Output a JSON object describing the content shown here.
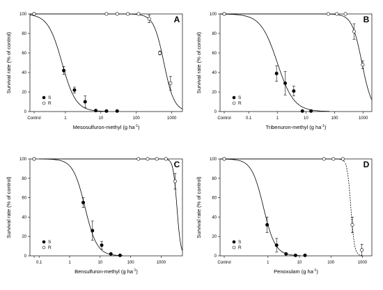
{
  "chart_data": [
    {
      "type": "scatter",
      "panel": "A",
      "xlabel": "Mesosulfuron-methyl (g ha",
      "xlabel_sup": "-1",
      "xlabel_end": ")",
      "ylabel": "Survival rate (% of control)",
      "x_scale": "log",
      "xlim": [
        0.1,
        2000
      ],
      "ylim": [
        0,
        100
      ],
      "x_ticks": [
        {
          "v": 1,
          "l": "1"
        },
        {
          "v": 10,
          "l": "10"
        },
        {
          "v": 100,
          "l": "100"
        },
        {
          "v": 1000,
          "l": "1000"
        }
      ],
      "control_label": "Control",
      "y_ticks": [
        0,
        20,
        40,
        60,
        80,
        100
      ],
      "legend_position": "bottom-left",
      "legend": [
        {
          "name": "S",
          "marker": "filled"
        },
        {
          "name": "R",
          "marker": "open"
        }
      ],
      "series": [
        {
          "name": "S",
          "marker": "filled",
          "points": [
            {
              "x": 0.1,
              "y": 100
            },
            {
              "x": 0.9,
              "y": 42,
              "err": 4
            },
            {
              "x": 1.8,
              "y": 22,
              "err": 3
            },
            {
              "x": 3.6,
              "y": 10,
              "err": 6
            },
            {
              "x": 7.2,
              "y": 1
            },
            {
              "x": 14.4,
              "y": 0.5
            },
            {
              "x": 28.8,
              "y": 0.5
            }
          ],
          "curve": {
            "ed50": 0.8,
            "slope": 2.2
          }
        },
        {
          "name": "R",
          "marker": "open",
          "points": [
            {
              "x": 0.1,
              "y": 100
            },
            {
              "x": 14.4,
              "y": 100
            },
            {
              "x": 28.8,
              "y": 100
            },
            {
              "x": 57.6,
              "y": 100
            },
            {
              "x": 115.2,
              "y": 100
            },
            {
              "x": 230.4,
              "y": 95,
              "err": 4
            },
            {
              "x": 460.8,
              "y": 60,
              "err": 2
            },
            {
              "x": 921.6,
              "y": 29,
              "err": 7
            }
          ],
          "curve": {
            "ed50": 600,
            "slope": 3.0
          }
        }
      ]
    },
    {
      "type": "scatter",
      "panel": "B",
      "xlabel": "Tribenuron-methyl (g ha",
      "xlabel_sup": "-1",
      "xlabel_end": ")",
      "ylabel": "Survival rate (% of control)",
      "x_scale": "log",
      "xlim": [
        0.01,
        2000
      ],
      "ylim": [
        0,
        100
      ],
      "x_ticks": [
        {
          "v": 0.1,
          "l": "0.1"
        },
        {
          "v": 1,
          "l": "1"
        },
        {
          "v": 10,
          "l": "10"
        },
        {
          "v": 100,
          "l": "100"
        },
        {
          "v": 1000,
          "l": "1000"
        }
      ],
      "control_label": "Control",
      "y_ticks": [
        0,
        20,
        40,
        60,
        80,
        100
      ],
      "legend_position": "bottom-left",
      "legend": [
        {
          "name": "S",
          "marker": "filled"
        },
        {
          "name": "R",
          "marker": "open"
        }
      ],
      "series": [
        {
          "name": "S",
          "marker": "filled",
          "points": [
            {
              "x": 0.01,
              "y": 100
            },
            {
              "x": 0.94,
              "y": 39,
              "err": 8
            },
            {
              "x": 1.88,
              "y": 29,
              "err": 12
            },
            {
              "x": 3.75,
              "y": 21,
              "err": 5
            },
            {
              "x": 7.5,
              "y": 0.5
            },
            {
              "x": 15,
              "y": 0.5
            }
          ],
          "curve": {
            "ed50": 1.0,
            "slope": 1.5
          }
        },
        {
          "name": "R",
          "marker": "open",
          "points": [
            {
              "x": 0.01,
              "y": 100
            },
            {
              "x": 60,
              "y": 100
            },
            {
              "x": 120,
              "y": 100
            },
            {
              "x": 240,
              "y": 100
            },
            {
              "x": 480,
              "y": 82,
              "err": 8
            },
            {
              "x": 960,
              "y": 48,
              "err": 4
            }
          ],
          "curve": {
            "ed50": 900,
            "slope": 2.5
          }
        }
      ]
    },
    {
      "type": "scatter",
      "panel": "C",
      "xlabel": "Bensulfuron-methyl (g ha",
      "xlabel_sup": "-1",
      "xlabel_end": ")",
      "ylabel": "Survival rate (% of control)",
      "x_scale": "log",
      "xlim": [
        0.05,
        5000
      ],
      "ylim": [
        0,
        100
      ],
      "x_ticks": [
        {
          "v": 0.1,
          "l": "0.1"
        },
        {
          "v": 1,
          "l": "1"
        },
        {
          "v": 10,
          "l": "10"
        },
        {
          "v": 100,
          "l": "100"
        },
        {
          "v": 1000,
          "l": "1000"
        }
      ],
      "control_label": "",
      "y_ticks": [
        0,
        20,
        40,
        60,
        80,
        100
      ],
      "legend_position": "bottom-left",
      "legend": [
        {
          "name": "S",
          "marker": "filled"
        },
        {
          "name": "R",
          "marker": "open"
        }
      ],
      "series": [
        {
          "name": "S",
          "marker": "filled",
          "points": [
            {
              "x": 0.1,
              "y": 100
            },
            {
              "x": 2.8,
              "y": 55,
              "err": 5
            },
            {
              "x": 5.6,
              "y": 26,
              "err": 10
            },
            {
              "x": 11.25,
              "y": 11,
              "err": 4
            },
            {
              "x": 22.5,
              "y": 2
            },
            {
              "x": 45,
              "y": 0.5
            }
          ],
          "curve": {
            "ed50": 3.2,
            "slope": 2.2
          }
        },
        {
          "name": "R",
          "marker": "open",
          "points": [
            {
              "x": 0.1,
              "y": 100
            },
            {
              "x": 180,
              "y": 100
            },
            {
              "x": 360,
              "y": 100
            },
            {
              "x": 720,
              "y": 100
            },
            {
              "x": 1440,
              "y": 100
            },
            {
              "x": 2880,
              "y": 77,
              "err": 8
            }
          ],
          "curve": {
            "ed50": 3300,
            "slope": 7.0
          }
        }
      ]
    },
    {
      "type": "scatter",
      "panel": "D",
      "xlabel": "Penoxulam (g ha",
      "xlabel_sup": "-1",
      "xlabel_end": ")",
      "ylabel": "Survival rate (% of control)",
      "x_scale": "log",
      "xlim": [
        0.03,
        2000
      ],
      "ylim": [
        0,
        100
      ],
      "x_ticks": [
        {
          "v": 1,
          "l": "1"
        },
        {
          "v": 10,
          "l": "10"
        },
        {
          "v": 100,
          "l": "100"
        },
        {
          "v": 1000,
          "l": "1000"
        }
      ],
      "control_label": "Control",
      "y_ticks": [
        0,
        20,
        40,
        60,
        80,
        100
      ],
      "legend_position": "bottom-left",
      "legend": [
        {
          "name": "S",
          "marker": "filled"
        },
        {
          "name": "R",
          "marker": "open"
        }
      ],
      "series": [
        {
          "name": "S",
          "marker": "filled",
          "points": [
            {
              "x": 0.03,
              "y": 100
            },
            {
              "x": 0.94,
              "y": 32,
              "err": 8
            },
            {
              "x": 1.88,
              "y": 11,
              "err": 7
            },
            {
              "x": 3.75,
              "y": 2
            },
            {
              "x": 7.5,
              "y": 0.5
            },
            {
              "x": 15,
              "y": 0.5
            }
          ],
          "curve": {
            "ed50": 0.72,
            "slope": 2.3
          }
        },
        {
          "name": "R",
          "marker": "open",
          "points": [
            {
              "x": 0.03,
              "y": 100
            },
            {
              "x": 60,
              "y": 100
            },
            {
              "x": 120,
              "y": 100
            },
            {
              "x": 240,
              "y": 100
            },
            {
              "x": 480,
              "y": 32,
              "err": 8
            },
            {
              "x": 960,
              "y": 6,
              "err": 6
            }
          ],
          "curve": {
            "ed50": 430,
            "slope": 7.5,
            "dashed_from": 280
          }
        }
      ]
    }
  ]
}
